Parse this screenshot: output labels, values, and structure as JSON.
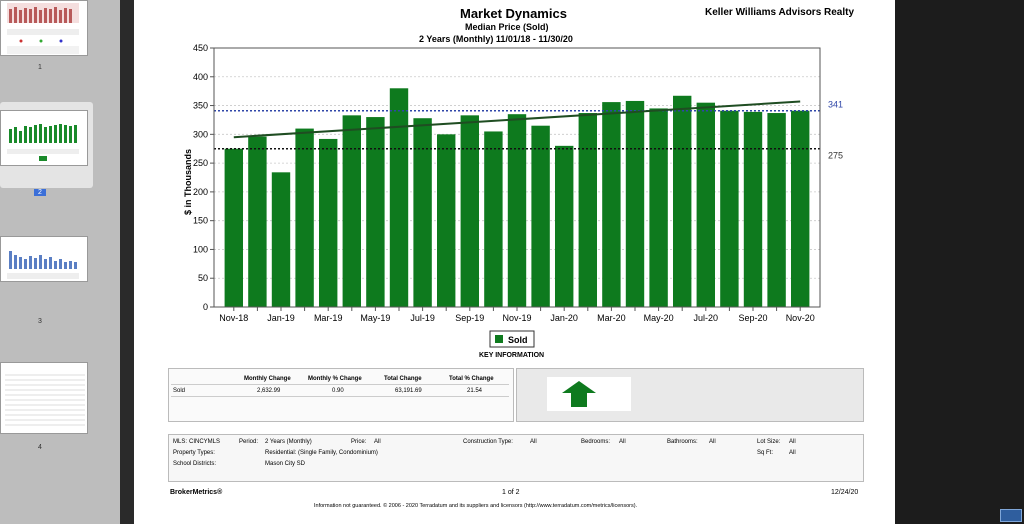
{
  "thumbnails": [
    {
      "number": "1",
      "selected": false
    },
    {
      "number": "2",
      "selected": true
    },
    {
      "number": "3",
      "selected": false
    },
    {
      "number": "4",
      "selected": false
    }
  ],
  "header": {
    "title": "Market Dynamics",
    "subtitle": "Median Price (Sold)",
    "period": "2 Years (Monthly) 11/01/18 - 11/30/20",
    "company": "Keller Williams Advisors Realty"
  },
  "chart_data": {
    "type": "bar",
    "title": "Median Price (Sold)",
    "ylabel": "$ in Thousands",
    "xlabel": "",
    "ylim": [
      0,
      450
    ],
    "yticks": [
      0,
      50,
      100,
      150,
      200,
      250,
      300,
      350,
      400,
      450
    ],
    "categories": [
      "Nov-18",
      "Dec-18",
      "Jan-19",
      "Feb-19",
      "Mar-19",
      "Apr-19",
      "May-19",
      "Jun-19",
      "Jul-19",
      "Aug-19",
      "Sep-19",
      "Oct-19",
      "Nov-19",
      "Dec-19",
      "Jan-20",
      "Feb-20",
      "Mar-20",
      "Apr-20",
      "May-20",
      "Jun-20",
      "Jul-20",
      "Aug-20",
      "Sep-20",
      "Oct-20",
      "Nov-20"
    ],
    "tick_labels": [
      "Nov-18",
      "Jan-19",
      "Mar-19",
      "May-19",
      "Jul-19",
      "Sep-19",
      "Nov-19",
      "Jan-20",
      "Mar-20",
      "May-20",
      "Jul-20",
      "Sep-20",
      "Nov-20"
    ],
    "series": [
      {
        "name": "Sold",
        "color": "#0e7a1e",
        "values": [
          275,
          296,
          234,
          310,
          292,
          333,
          330,
          380,
          328,
          300,
          333,
          305,
          335,
          315,
          280,
          337,
          356,
          358,
          345,
          367,
          355,
          341,
          339,
          337,
          341
        ]
      }
    ],
    "trendline": {
      "start": 295,
      "end": 357,
      "color": "#1f4d22"
    },
    "reference_lines": [
      {
        "value": 341,
        "label": "341",
        "color": "#2f46a8"
      },
      {
        "value": 275,
        "label": "275",
        "color": "#111111"
      }
    ],
    "legend": {
      "label": "Sold",
      "placement": "bottom-center"
    },
    "grid": true
  },
  "key_info": {
    "title": "KEY INFORMATION",
    "columns": [
      "Monthly Change",
      "Monthly % Change",
      "Total Change",
      "Total % Change"
    ],
    "row": {
      "label": "Sold",
      "values": [
        "2,632.99",
        "0.90",
        "63,191.69",
        "21.54"
      ]
    }
  },
  "filters": {
    "mls_label": "MLS:",
    "mls_value": "CINCYMLS",
    "period_label": "Period:",
    "period_value": "2 Years (Monthly)",
    "price_label": "Price:",
    "price_value": "All",
    "construction_label": "Construction Type:",
    "construction_value": "All",
    "bedrooms_label": "Bedrooms:",
    "bedrooms_value": "All",
    "bathrooms_label": "Bathrooms:",
    "bathrooms_value": "All",
    "lotsize_label": "Lot Size:",
    "lotsize_value": "All",
    "property_label": "Property Types:",
    "property_value": "Residential: (Single Family, Condominium)",
    "sqft_label": "Sq Ft:",
    "sqft_value": "All",
    "school_label": "School Districts:",
    "school_value": "Mason City SD"
  },
  "footer": {
    "brand": "BrokerMetrics®",
    "page": "1 of 2",
    "date": "12/24/20",
    "disclaimer": "Information not guaranteed.  © 2006 - 2020 Terradatum and its suppliers and licensors (http://www.terradatum.com/metrics/licensors)."
  }
}
